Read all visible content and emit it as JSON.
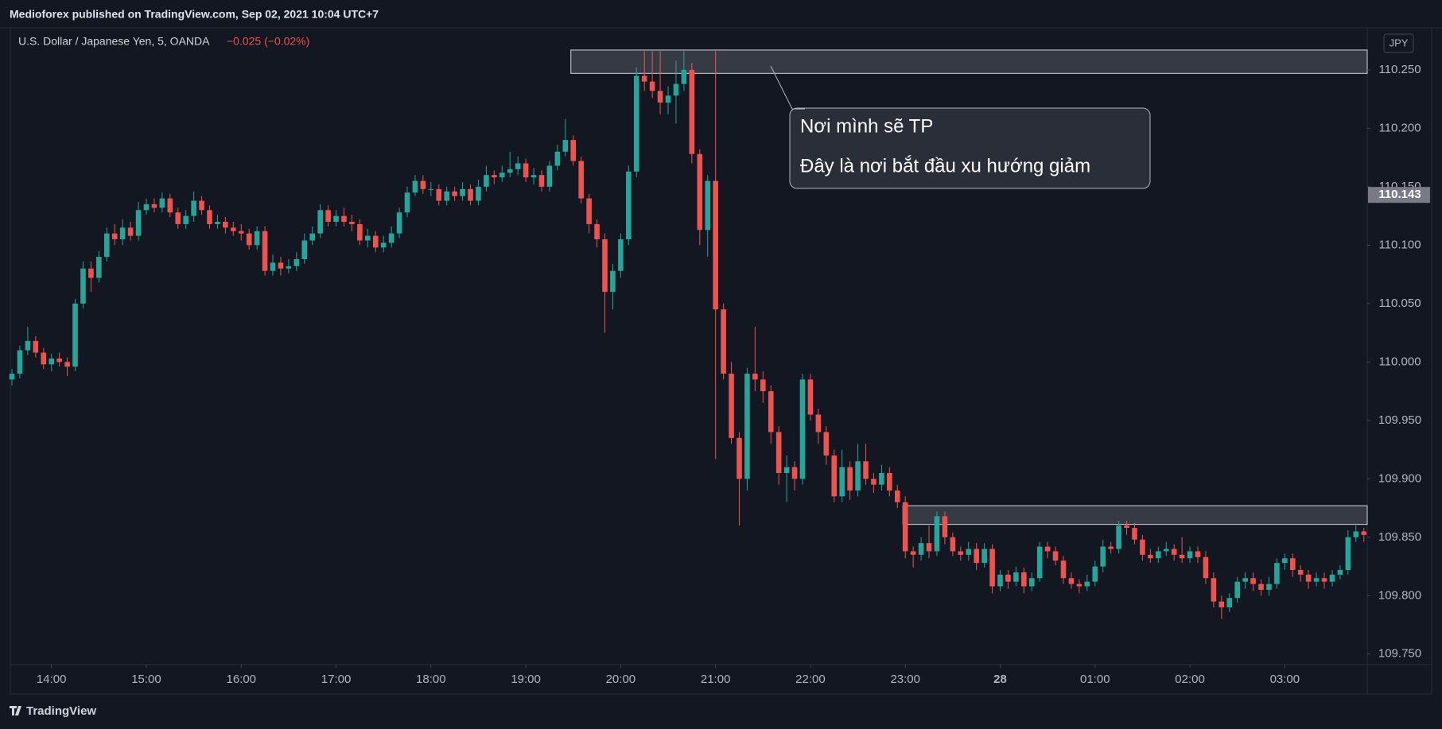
{
  "header": "Medioforex published on TradingView.com, Sep 02, 2021 10:04 UTC+7",
  "brand": "TradingView",
  "chart_data": {
    "type": "candlestick",
    "title": "U.S. Dollar / Japanese Yen, 5, OANDA",
    "change_label": "−0.025 (−0.02%)",
    "currency": "JPY",
    "up_color": "#26a69a",
    "down_color": "#ef5350",
    "grid": false,
    "x": [
      "13:35",
      "13:40",
      "13:45",
      "13:50",
      "13:55",
      "14:00",
      "14:05",
      "14:10",
      "14:15",
      "14:20",
      "14:25",
      "14:30",
      "14:35",
      "14:40",
      "14:45",
      "14:50",
      "14:55",
      "15:00",
      "15:05",
      "15:10",
      "15:15",
      "15:20",
      "15:25",
      "15:30",
      "15:35",
      "15:40",
      "15:45",
      "15:50",
      "15:55",
      "16:00",
      "16:05",
      "16:10",
      "16:15",
      "16:20",
      "16:25",
      "16:30",
      "16:35",
      "16:40",
      "16:45",
      "16:50",
      "16:55",
      "17:00",
      "17:05",
      "17:10",
      "17:15",
      "17:20",
      "17:25",
      "17:30",
      "17:35",
      "17:40",
      "17:45",
      "17:50",
      "17:55",
      "18:00",
      "18:05",
      "18:10",
      "18:15",
      "18:20",
      "18:25",
      "18:30",
      "18:35",
      "18:40",
      "18:45",
      "18:50",
      "18:55",
      "19:00",
      "19:05",
      "19:10",
      "19:15",
      "19:20",
      "19:25",
      "19:30",
      "19:35",
      "19:40",
      "19:45",
      "19:50",
      "19:55",
      "20:00",
      "20:05",
      "20:10",
      "20:15",
      "20:20",
      "20:25",
      "20:30",
      "20:35",
      "20:40",
      "20:45",
      "20:50",
      "20:55",
      "21:00",
      "21:05",
      "21:10",
      "21:15",
      "21:20",
      "21:25",
      "21:30",
      "21:35",
      "21:40",
      "21:45",
      "21:50",
      "21:55",
      "22:00",
      "22:05",
      "22:10",
      "22:15",
      "22:20",
      "22:25",
      "22:30",
      "22:35",
      "22:40",
      "22:45",
      "22:50",
      "22:55",
      "23:00",
      "23:05",
      "23:10",
      "23:15",
      "23:20",
      "23:25",
      "23:30",
      "23:35",
      "23:40",
      "23:45",
      "23:50",
      "23:55",
      "00:00",
      "00:05",
      "00:10",
      "00:15",
      "00:20",
      "00:25",
      "00:30",
      "00:35",
      "00:40",
      "00:45",
      "00:50",
      "00:55",
      "01:00",
      "01:05",
      "01:10",
      "01:15",
      "01:20",
      "01:25",
      "01:30",
      "01:35",
      "01:40",
      "01:45",
      "01:50",
      "01:55",
      "02:00",
      "02:05",
      "02:10",
      "02:15",
      "02:20",
      "02:25",
      "02:30",
      "02:35",
      "02:40",
      "02:45",
      "02:50",
      "02:55",
      "03:00",
      "03:05",
      "03:10",
      "03:15",
      "03:20",
      "03:25",
      "03:30",
      "03:35",
      "03:40",
      "03:45",
      "03:50"
    ],
    "open": [
      109.985,
      109.99,
      110.01,
      110.018,
      110.008,
      109.998,
      110.003,
      110.0,
      109.996,
      110.05,
      110.08,
      110.072,
      110.09,
      110.11,
      110.105,
      110.115,
      110.108,
      110.13,
      110.135,
      110.132,
      110.14,
      110.128,
      110.118,
      110.125,
      110.138,
      110.13,
      110.118,
      110.12,
      110.115,
      110.112,
      110.11,
      110.1,
      110.112,
      110.078,
      110.085,
      110.08,
      110.082,
      110.088,
      110.104,
      110.11,
      110.13,
      110.12,
      110.125,
      110.12,
      110.118,
      110.104,
      110.108,
      110.098,
      110.102,
      110.11,
      110.128,
      110.145,
      110.155,
      110.148,
      110.148,
      110.138,
      110.146,
      110.142,
      110.148,
      110.138,
      110.15,
      110.16,
      110.158,
      110.162,
      110.165,
      110.17,
      110.158,
      110.16,
      110.15,
      110.168,
      110.18,
      110.19,
      110.172,
      110.14,
      110.118,
      110.105,
      110.06,
      110.078,
      110.105,
      110.163,
      110.245,
      110.24,
      110.232,
      110.222,
      110.228,
      110.238,
      110.25,
      110.178,
      110.113,
      110.155,
      110.045,
      109.99,
      109.935,
      109.9,
      109.99,
      109.985,
      109.975,
      109.94,
      109.905,
      109.91,
      109.9,
      109.985,
      109.955,
      109.94,
      109.92,
      109.885,
      109.91,
      109.89,
      109.915,
      109.9,
      109.895,
      109.905,
      109.89,
      109.88,
      109.838,
      109.835,
      109.845,
      109.838,
      109.868,
      109.85,
      109.838,
      109.835,
      109.84,
      109.828,
      109.84,
      109.808,
      109.818,
      109.812,
      109.82,
      109.808,
      109.815,
      109.842,
      109.838,
      109.83,
      109.815,
      109.81,
      109.808,
      109.812,
      109.825,
      109.842,
      109.84,
      109.86,
      109.858,
      109.848,
      109.835,
      109.832,
      109.838,
      109.84,
      109.835,
      109.832,
      109.838,
      109.833,
      109.815,
      109.795,
      109.79,
      109.798,
      109.812,
      109.815,
      109.81,
      109.805,
      109.81,
      109.828,
      109.832,
      109.822,
      109.818,
      109.812,
      109.815,
      109.812,
      109.818,
      109.822,
      109.85,
      109.855
    ],
    "high": [
      109.994,
      110.014,
      110.03,
      110.022,
      110.012,
      110.007,
      110.008,
      110.004,
      110.054,
      110.086,
      110.086,
      110.095,
      110.115,
      110.118,
      110.122,
      110.12,
      110.137,
      110.14,
      110.14,
      110.145,
      110.144,
      110.132,
      110.13,
      110.146,
      110.142,
      110.134,
      110.126,
      110.124,
      110.12,
      110.118,
      110.114,
      110.116,
      110.116,
      110.092,
      110.09,
      110.088,
      110.094,
      110.11,
      110.116,
      110.135,
      110.134,
      110.13,
      110.132,
      110.126,
      110.122,
      110.114,
      110.112,
      110.108,
      110.116,
      110.132,
      110.15,
      110.16,
      110.16,
      110.154,
      110.152,
      110.15,
      110.15,
      110.154,
      110.152,
      110.156,
      110.168,
      110.164,
      110.168,
      110.18,
      110.176,
      110.174,
      110.166,
      110.164,
      110.172,
      110.186,
      110.208,
      110.194,
      110.176,
      110.144,
      110.122,
      110.11,
      110.084,
      110.11,
      110.168,
      110.252,
      110.266,
      110.266,
      110.266,
      110.236,
      110.258,
      110.266,
      110.256,
      110.182,
      110.16,
      110.266,
      110.05,
      110.0,
      109.94,
      109.995,
      110.03,
      109.992,
      109.98,
      109.945,
      109.92,
      109.915,
      109.99,
      109.99,
      109.96,
      109.945,
      109.925,
      109.925,
      109.915,
      109.93,
      109.93,
      109.905,
      109.912,
      109.91,
      109.895,
      109.885,
      109.842,
      109.85,
      109.86,
      109.872,
      109.872,
      109.854,
      109.842,
      109.846,
      109.845,
      109.845,
      109.844,
      109.822,
      109.822,
      109.825,
      109.824,
      109.82,
      109.846,
      109.846,
      109.842,
      109.834,
      109.82,
      109.814,
      109.818,
      109.83,
      109.848,
      109.846,
      109.864,
      109.864,
      109.862,
      109.852,
      109.84,
      109.842,
      109.846,
      109.844,
      109.85,
      109.842,
      109.842,
      109.838,
      109.82,
      109.8,
      109.802,
      109.816,
      109.82,
      109.82,
      109.814,
      109.816,
      109.832,
      109.836,
      109.836,
      109.826,
      109.822,
      109.82,
      109.82,
      109.822,
      109.826,
      109.856,
      109.86,
      109.858
    ],
    "low": [
      109.98,
      109.986,
      110.006,
      110.004,
      109.994,
      109.992,
      109.996,
      109.988,
      109.992,
      110.046,
      110.06,
      110.068,
      110.086,
      110.1,
      110.1,
      110.104,
      110.104,
      110.126,
      110.128,
      110.128,
      110.124,
      110.114,
      110.114,
      110.12,
      110.126,
      110.114,
      110.114,
      110.11,
      110.108,
      110.104,
      110.096,
      110.096,
      110.074,
      110.074,
      110.074,
      110.076,
      110.078,
      110.084,
      110.1,
      110.106,
      110.116,
      110.116,
      110.116,
      110.112,
      110.1,
      110.098,
      110.094,
      110.094,
      110.098,
      110.106,
      110.124,
      110.142,
      110.144,
      110.142,
      110.134,
      110.134,
      110.138,
      110.138,
      110.134,
      110.134,
      110.146,
      110.152,
      110.154,
      110.158,
      110.16,
      110.154,
      110.152,
      110.146,
      110.146,
      110.164,
      110.176,
      110.168,
      110.136,
      110.11,
      110.098,
      110.025,
      110.045,
      110.072,
      110.1,
      110.158,
      110.232,
      110.226,
      110.212,
      110.212,
      110.204,
      110.232,
      110.17,
      110.1,
      110.09,
      109.917,
      109.985,
      109.93,
      109.86,
      109.89,
      109.975,
      109.965,
      109.93,
      109.895,
      109.88,
      109.89,
      109.895,
      109.95,
      109.93,
      109.912,
      109.88,
      109.88,
      109.882,
      109.885,
      109.895,
      109.888,
      109.89,
      109.885,
      109.875,
      109.832,
      109.824,
      109.83,
      109.832,
      109.834,
      109.844,
      109.834,
      109.83,
      109.83,
      109.822,
      109.824,
      109.802,
      109.804,
      109.806,
      109.808,
      109.802,
      109.804,
      109.812,
      109.832,
      109.826,
      109.81,
      109.806,
      109.802,
      109.804,
      109.808,
      109.82,
      109.836,
      109.836,
      109.852,
      109.844,
      109.83,
      109.828,
      109.828,
      109.834,
      109.83,
      109.828,
      109.828,
      109.828,
      109.81,
      109.79,
      109.78,
      109.786,
      109.794,
      109.806,
      109.804,
      109.8,
      109.8,
      109.806,
      109.822,
      109.816,
      109.812,
      109.806,
      109.808,
      109.806,
      109.808,
      109.814,
      109.818,
      109.846,
      109.846
    ],
    "close": [
      109.99,
      110.01,
      110.018,
      110.008,
      109.998,
      110.003,
      110.0,
      109.996,
      110.05,
      110.08,
      110.072,
      110.09,
      110.11,
      110.105,
      110.115,
      110.108,
      110.13,
      110.135,
      110.132,
      110.14,
      110.128,
      110.118,
      110.125,
      110.138,
      110.13,
      110.118,
      110.12,
      110.115,
      110.112,
      110.11,
      110.1,
      110.112,
      110.078,
      110.085,
      110.08,
      110.082,
      110.088,
      110.104,
      110.11,
      110.13,
      110.12,
      110.125,
      110.12,
      110.118,
      110.104,
      110.108,
      110.098,
      110.102,
      110.11,
      110.128,
      110.145,
      110.155,
      110.148,
      110.148,
      110.138,
      110.146,
      110.142,
      110.148,
      110.138,
      110.15,
      110.16,
      110.158,
      110.162,
      110.165,
      110.17,
      110.158,
      110.16,
      110.15,
      110.168,
      110.18,
      110.19,
      110.172,
      110.14,
      110.118,
      110.105,
      110.06,
      110.078,
      110.105,
      110.163,
      110.245,
      110.24,
      110.232,
      110.222,
      110.228,
      110.238,
      110.25,
      110.178,
      110.113,
      110.155,
      110.045,
      109.99,
      109.935,
      109.9,
      109.99,
      109.985,
      109.975,
      109.94,
      109.905,
      109.91,
      109.9,
      109.985,
      109.955,
      109.94,
      109.92,
      109.885,
      109.91,
      109.89,
      109.915,
      109.9,
      109.895,
      109.905,
      109.89,
      109.88,
      109.838,
      109.835,
      109.845,
      109.838,
      109.868,
      109.85,
      109.838,
      109.835,
      109.84,
      109.828,
      109.84,
      109.808,
      109.818,
      109.812,
      109.82,
      109.808,
      109.815,
      109.842,
      109.838,
      109.83,
      109.815,
      109.81,
      109.808,
      109.812,
      109.825,
      109.842,
      109.84,
      109.86,
      109.858,
      109.848,
      109.835,
      109.832,
      109.838,
      109.84,
      109.835,
      109.832,
      109.838,
      109.833,
      109.815,
      109.795,
      109.79,
      109.798,
      109.812,
      109.815,
      109.81,
      109.805,
      109.81,
      109.828,
      109.832,
      109.822,
      109.818,
      109.812,
      109.815,
      109.812,
      109.818,
      109.822,
      109.85,
      109.855,
      109.852
    ],
    "xticks": [
      "14:00",
      "15:00",
      "16:00",
      "17:00",
      "18:00",
      "19:00",
      "20:00",
      "21:00",
      "22:00",
      "23:00",
      {
        "value": "00:00",
        "label": "28"
      },
      "01:00",
      "02:00",
      "03:00"
    ],
    "ylim": [
      109.741,
      110.286
    ],
    "yticks": [
      {
        "value": 109.75,
        "label": "109.750"
      },
      {
        "value": 109.8,
        "label": "109.800"
      },
      {
        "value": 109.85,
        "label": "109.850"
      },
      {
        "value": 109.9,
        "label": "109.900"
      },
      {
        "value": 109.95,
        "label": "109.950"
      },
      {
        "value": 110,
        "label": "110.000"
      },
      {
        "value": 110.05,
        "label": "110.050"
      },
      {
        "value": 110.1,
        "label": "110.100"
      },
      {
        "value": 110.15,
        "label": "110.150"
      },
      {
        "value": 110.2,
        "label": "110.200"
      },
      {
        "value": 110.25,
        "label": "110.250"
      }
    ],
    "price_marker": {
      "value": 110.143,
      "label": "110.143"
    },
    "zones": [
      {
        "start": "19:30",
        "top": 110.267,
        "bottom": 110.247
      },
      {
        "start": "23:00",
        "top": 109.877,
        "bottom": 109.861
      }
    ],
    "annotation": [
      "Nơi mình sẽ TP",
      "Đây là nơi bắt đầu xu hướng giảm"
    ]
  }
}
